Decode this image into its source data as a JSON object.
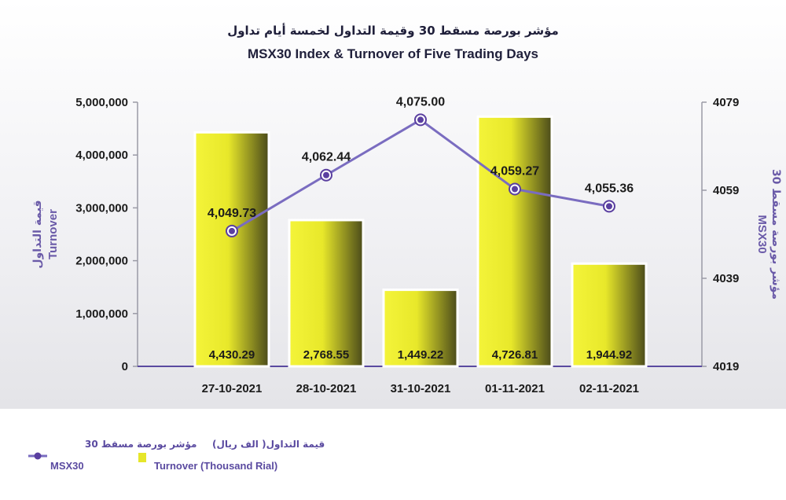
{
  "chart_data": {
    "type": "bar+line",
    "title_ar": "مؤشر بورصة مسقط 30 وقيمة التداول لخمسة أيام تداول",
    "title": "MSX30 Index & Turnover of Five Trading Days",
    "categories": [
      "27-10-2021",
      "28-10-2021",
      "31-10-2021",
      "01-11-2021",
      "02-11-2021"
    ],
    "series": [
      {
        "name": "Turnover (Thousand Rial)",
        "name_ar": "قيمة التداول( الف ريال)",
        "type": "bar",
        "axis": "left",
        "values": [
          4430.29,
          2768.55,
          1449.22,
          4726.81,
          1944.92
        ],
        "labels": [
          "4,430.29",
          "2,768.55",
          "1,449.22",
          "4,726.81",
          "1,944.92"
        ],
        "color": "#e6e62a"
      },
      {
        "name": "MSX30",
        "name_ar": "مؤشر بورصة مسقط 30",
        "type": "line",
        "axis": "right",
        "values": [
          4049.73,
          4062.44,
          4075.0,
          4059.27,
          4055.36
        ],
        "labels": [
          "4,049.73",
          "4,062.44",
          "4,075.00",
          "4,059.27",
          "4,055.36"
        ],
        "color": "#7a6cc0"
      }
    ],
    "y_left": {
      "label_ar": "قيمة التداول",
      "label": "Turnover",
      "range": [
        0,
        5000000
      ],
      "ticks": [
        0,
        1000000,
        2000000,
        3000000,
        4000000,
        5000000
      ],
      "tick_labels": [
        "0",
        "1,000,000",
        "2,000,000",
        "3,000,000",
        "4,000,000",
        "5,000,000"
      ]
    },
    "y_right": {
      "label_ar": "مؤشر بورصة مسقط 30",
      "label": "MSX30",
      "range": [
        4019,
        4079
      ],
      "ticks": [
        4019,
        4039,
        4059,
        4079
      ],
      "tick_labels": [
        "4019",
        "4039",
        "4059",
        "4079"
      ]
    },
    "grid": false,
    "legend_position": "bottom-left",
    "background": [
      "#ffffff",
      "#e6e6ea"
    ]
  }
}
